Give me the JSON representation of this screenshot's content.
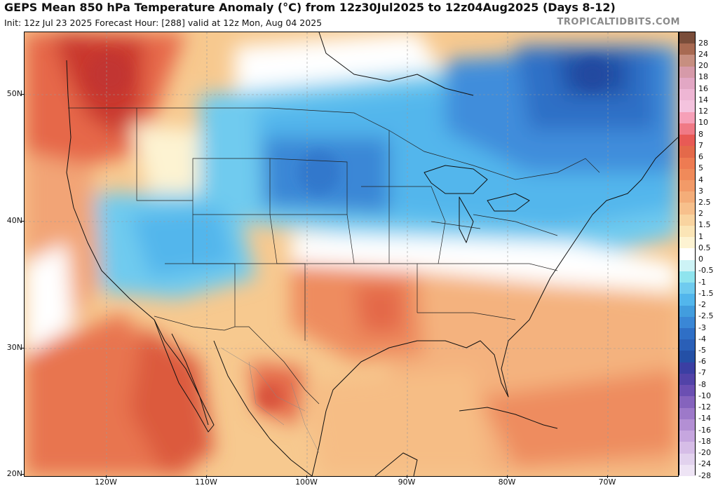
{
  "header": {
    "title": "GEPS Mean 850 hPa Temperature Anomaly (°C) from 12z30Jul2025 to 12z04Aug2025 (Days 8-12)",
    "subtitle": "Init: 12z Jul 23 2025   Forecast Hour: [288]   valid at 12z Mon, Aug 04 2025",
    "brand": "TROPICALTIDBITS.COM"
  },
  "map": {
    "latitude_labels": [
      "50N",
      "40N",
      "30N",
      "20N"
    ],
    "longitude_labels": [
      "120W",
      "110W",
      "100W",
      "90W",
      "80W",
      "70W"
    ],
    "colors": {
      "hot_strong": "#c9382f",
      "hot": "#e4694a",
      "warm": "#f0a270",
      "mild_warm": "#f7c98f",
      "slight_warm": "#fbe7b3",
      "neutral": "#ffffff",
      "slight_cool": "#8fe4ee",
      "cool": "#52b6ec",
      "cold": "#3a87d6",
      "colder": "#2a5fb7"
    }
  },
  "legend": {
    "labels": [
      "28",
      "24",
      "20",
      "18",
      "16",
      "14",
      "12",
      "10",
      "8",
      "7",
      "6",
      "5",
      "4",
      "3",
      "2.5",
      "2",
      "1.5",
      "1",
      "0.5",
      "0",
      "-0.5",
      "-1",
      "-1.5",
      "-2",
      "-2.5",
      "-3",
      "-4",
      "-5",
      "-6",
      "-7",
      "-8",
      "-10",
      "-12",
      "-14",
      "-16",
      "-18",
      "-20",
      "-24",
      "-28"
    ],
    "colors": [
      "#7a4d3a",
      "#a86a52",
      "#c78f80",
      "#d69aa9",
      "#e2a7c4",
      "#eeb6d4",
      "#f4c3de",
      "#f6a0b8",
      "#f07a86",
      "#e85a55",
      "#e4694a",
      "#ee7b52",
      "#f08a5a",
      "#f29a68",
      "#f4ad79",
      "#f7c08c",
      "#f9d4a0",
      "#fbe5b6",
      "#fdf3d2",
      "#ffffff",
      "#cdf3f6",
      "#8fe4ee",
      "#6fcbef",
      "#52b6ec",
      "#429dde",
      "#3a87d6",
      "#2f6fc6",
      "#2a5fb7",
      "#2450a6",
      "#3b3fa3",
      "#5243a8",
      "#6b4fb2",
      "#8563bd",
      "#9d79c9",
      "#b38fd4",
      "#c6a6df",
      "#d6bde7",
      "#e2d2ee",
      "#eee4f5"
    ]
  }
}
